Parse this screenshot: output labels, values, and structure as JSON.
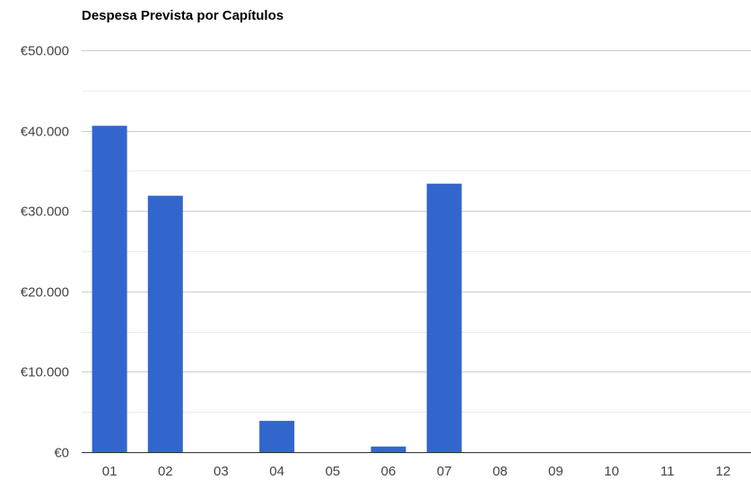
{
  "chart_data": {
    "type": "bar",
    "title": "Despesa Prevista por Capítulos",
    "xlabel": "",
    "ylabel": "",
    "categories": [
      "01",
      "02",
      "03",
      "04",
      "05",
      "06",
      "07",
      "08",
      "09",
      "10",
      "11",
      "12"
    ],
    "values": [
      40600,
      31900,
      0,
      3900,
      0,
      700,
      33400,
      0,
      0,
      0,
      0,
      0
    ],
    "ylim": [
      0,
      50000
    ],
    "yticks": [
      0,
      10000,
      20000,
      30000,
      40000,
      50000
    ],
    "ytick_labels": [
      "€0",
      "€10.000",
      "€20.000",
      "€30.000",
      "€40.000",
      "€50.000"
    ],
    "grid": true,
    "minor_grid": true,
    "legend": "none",
    "colors": {
      "bar": "#3366cc",
      "major_grid": "#cccccc",
      "minor_grid": "#ebebeb",
      "baseline": "#333333"
    }
  }
}
